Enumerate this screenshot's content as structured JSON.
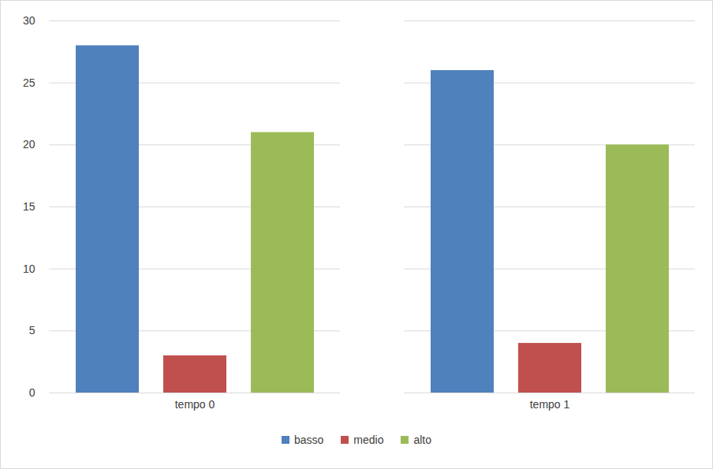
{
  "chart_data": {
    "type": "bar",
    "categories": [
      "tempo 0",
      "tempo 1"
    ],
    "series": [
      {
        "name": "basso",
        "color": "#4f81bd",
        "values": [
          28,
          26
        ]
      },
      {
        "name": "medio",
        "color": "#c0504d",
        "values": [
          3,
          4
        ]
      },
      {
        "name": "alto",
        "color": "#9bbb59",
        "values": [
          21,
          20
        ]
      }
    ],
    "ylim": [
      0,
      30
    ],
    "yticks": [
      0,
      5,
      10,
      15,
      20,
      25,
      30
    ],
    "grid": true,
    "legend": "bottom"
  }
}
